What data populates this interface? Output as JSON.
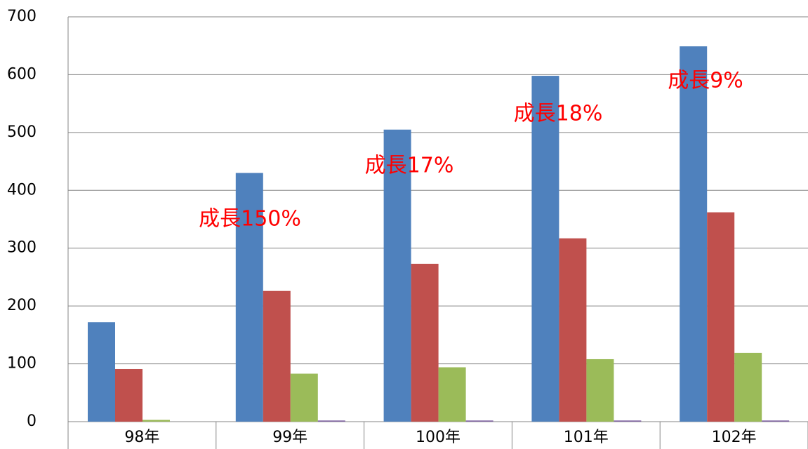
{
  "chart_data": {
    "type": "bar",
    "categories": [
      "98年",
      "99年",
      "100年",
      "101年",
      "102年"
    ],
    "series": [
      {
        "color": "#4f81bd",
        "values": [
          172,
          430,
          505,
          598,
          649
        ]
      },
      {
        "color": "#c0504d",
        "values": [
          91,
          226,
          273,
          317,
          362
        ]
      },
      {
        "color": "#9bbb59",
        "values": [
          3,
          83,
          94,
          108,
          119
        ]
      },
      {
        "color": "#8064a2",
        "values": [
          0,
          2,
          2,
          2,
          2
        ]
      }
    ],
    "ylim": [
      0,
      700
    ],
    "yticks": [
      0,
      100,
      200,
      300,
      400,
      500,
      600,
      700
    ],
    "grid": true,
    "annotations": [
      "成長150%",
      "成長17%",
      "成長18%",
      "成長9%"
    ],
    "annotation_color": "#ff0000"
  }
}
